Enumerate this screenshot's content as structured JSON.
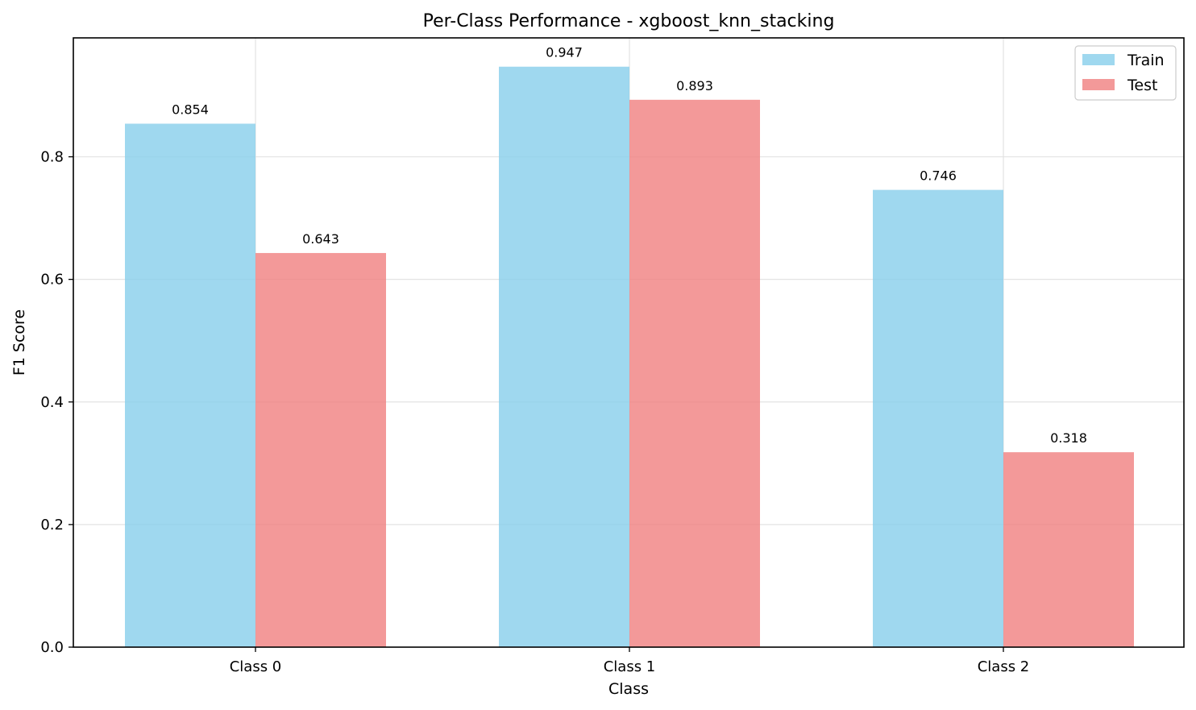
{
  "chart_data": {
    "type": "bar",
    "title": "Per-Class Performance - xgboost_knn_stacking",
    "xlabel": "Class",
    "ylabel": "F1 Score",
    "categories": [
      "Class 0",
      "Class 1",
      "Class 2"
    ],
    "series": [
      {
        "name": "Train",
        "values": [
          0.854,
          0.947,
          0.746
        ],
        "labels": [
          "0.854",
          "0.947",
          "0.746"
        ],
        "color": "#87CEEB"
      },
      {
        "name": "Test",
        "values": [
          0.643,
          0.893,
          0.318
        ],
        "labels": [
          "0.643",
          "0.893",
          "0.318"
        ],
        "color": "#F08080"
      }
    ],
    "ylim": [
      0,
      0.994
    ],
    "yticks": [
      0.0,
      0.2,
      0.4,
      0.6,
      0.8
    ],
    "ytick_labels": [
      "0.0",
      "0.2",
      "0.4",
      "0.6",
      "0.8"
    ],
    "grid": true,
    "legend_position": "top-right"
  }
}
